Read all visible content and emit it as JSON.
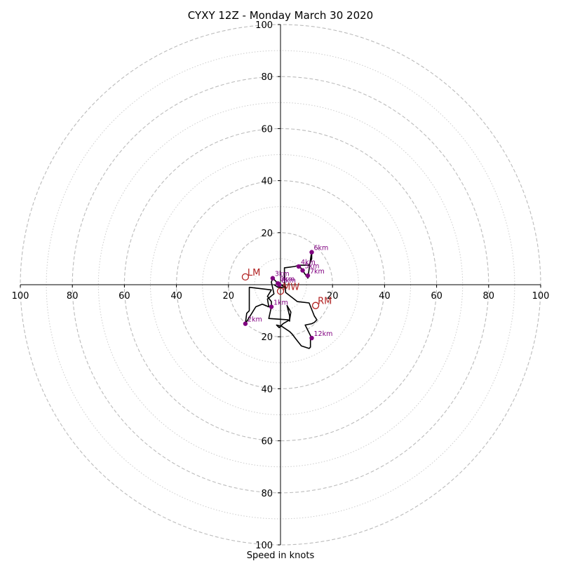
{
  "chart_data": {
    "type": "line",
    "title": "CYXY 12Z - Monday March 30 2020",
    "xlabel": "Speed in knots",
    "ylabel": "",
    "xlim": [
      -100,
      100
    ],
    "ylim": [
      -100,
      100
    ],
    "rings_major": [
      20,
      40,
      60,
      80,
      100
    ],
    "rings_minor": [
      10,
      30,
      50,
      70,
      90
    ],
    "x_tick_labels": [
      "100",
      "80",
      "60",
      "40",
      "20",
      "20",
      "40",
      "60",
      "80",
      "100"
    ],
    "x_tick_values": [
      -100,
      -80,
      -60,
      -40,
      -20,
      20,
      40,
      60,
      80,
      100
    ],
    "y_tick_labels": [
      "100",
      "80",
      "60",
      "40",
      "20",
      "20",
      "40",
      "60",
      "80",
      "100"
    ],
    "y_tick_values": [
      100,
      80,
      60,
      40,
      20,
      -20,
      -40,
      -60,
      -80,
      -100
    ],
    "hodograph": [
      [
        -2.5,
        0.0
      ],
      [
        -1.0,
        -1.0
      ],
      [
        2.0,
        -1.0
      ],
      [
        -1.0,
        0.5
      ],
      [
        -3.0,
        2.5
      ],
      [
        -3.5,
        1.0
      ],
      [
        -2.5,
        -3.5
      ],
      [
        -5.0,
        -5.5
      ],
      [
        -4.5,
        -8.5
      ],
      [
        -7.0,
        -7.5
      ],
      [
        -9.5,
        -8.5
      ],
      [
        -13.5,
        -15.0
      ],
      [
        -13.0,
        -11.0
      ],
      [
        -12.0,
        -10.0
      ],
      [
        -12.0,
        -1.0
      ],
      [
        -3.5,
        -2.0
      ],
      [
        -5.0,
        -4.5
      ],
      [
        -3.5,
        -6.5
      ],
      [
        -3.5,
        -8.5
      ],
      [
        -4.5,
        -13.0
      ],
      [
        3.0,
        -13.5
      ],
      [
        3.5,
        -14.0
      ],
      [
        3.5,
        -12.0
      ],
      [
        2.5,
        -8.0
      ],
      [
        4.0,
        -10.5
      ],
      [
        3.5,
        -13.5
      ],
      [
        1.0,
        -15.0
      ],
      [
        -0.5,
        -16.5
      ],
      [
        -1.5,
        -15.5
      ],
      [
        0.5,
        -16.0
      ],
      [
        3.5,
        -18.0
      ],
      [
        4.5,
        -19.0
      ],
      [
        6.0,
        -21.0
      ],
      [
        8.0,
        -23.5
      ],
      [
        11.0,
        -24.5
      ],
      [
        11.5,
        -24.0
      ],
      [
        11.5,
        -20.5
      ],
      [
        12.0,
        -20.5
      ],
      [
        9.5,
        -15.5
      ],
      [
        12.0,
        -15.0
      ],
      [
        13.0,
        -14.5
      ],
      [
        14.0,
        -13.5
      ],
      [
        13.0,
        -12.0
      ],
      [
        11.0,
        -7.0
      ],
      [
        6.5,
        -6.5
      ],
      [
        2.0,
        -3.0
      ],
      [
        1.5,
        2.5
      ],
      [
        1.5,
        6.5
      ],
      [
        5.5,
        7.0
      ],
      [
        7.0,
        7.5
      ],
      [
        11.0,
        7.5
      ],
      [
        12.0,
        10.0
      ],
      [
        12.0,
        12.5
      ],
      [
        12.0,
        13.0
      ],
      [
        10.5,
        2.5
      ],
      [
        8.5,
        5.5
      ],
      [
        7.0,
        7.5
      ]
    ],
    "height_points": [
      {
        "label": "0km",
        "u": -1.0,
        "v": 0.5
      },
      {
        "label": "1km",
        "u": -3.5,
        "v": -8.5
      },
      {
        "label": "2km",
        "u": -13.5,
        "v": -15.0
      },
      {
        "label": "3km",
        "u": -3.0,
        "v": 2.5
      },
      {
        "label": "4km",
        "u": 7.0,
        "v": 7.0
      },
      {
        "label": "5km",
        "u": 8.5,
        "v": 5.5
      },
      {
        "label": "6km",
        "u": 12.0,
        "v": 12.5
      },
      {
        "label": "7km",
        "u": 10.5,
        "v": 3.5
      },
      {
        "label": "8km",
        "u": -0.5,
        "v": 0.0
      },
      {
        "label": "12km",
        "u": 12.0,
        "v": -20.5
      }
    ],
    "motion_markers": [
      {
        "label": "LM",
        "u": -13.5,
        "v": 3.0
      },
      {
        "label": "RM",
        "u": 13.5,
        "v": -8.0
      },
      {
        "label": "MW",
        "u": 0.0,
        "v": -2.5
      }
    ],
    "colors": {
      "hodograph": "#000000",
      "height_points": "#800080",
      "motion_markers": "#b22222",
      "rings": "#bbbbbb",
      "axes": "#000000"
    }
  }
}
